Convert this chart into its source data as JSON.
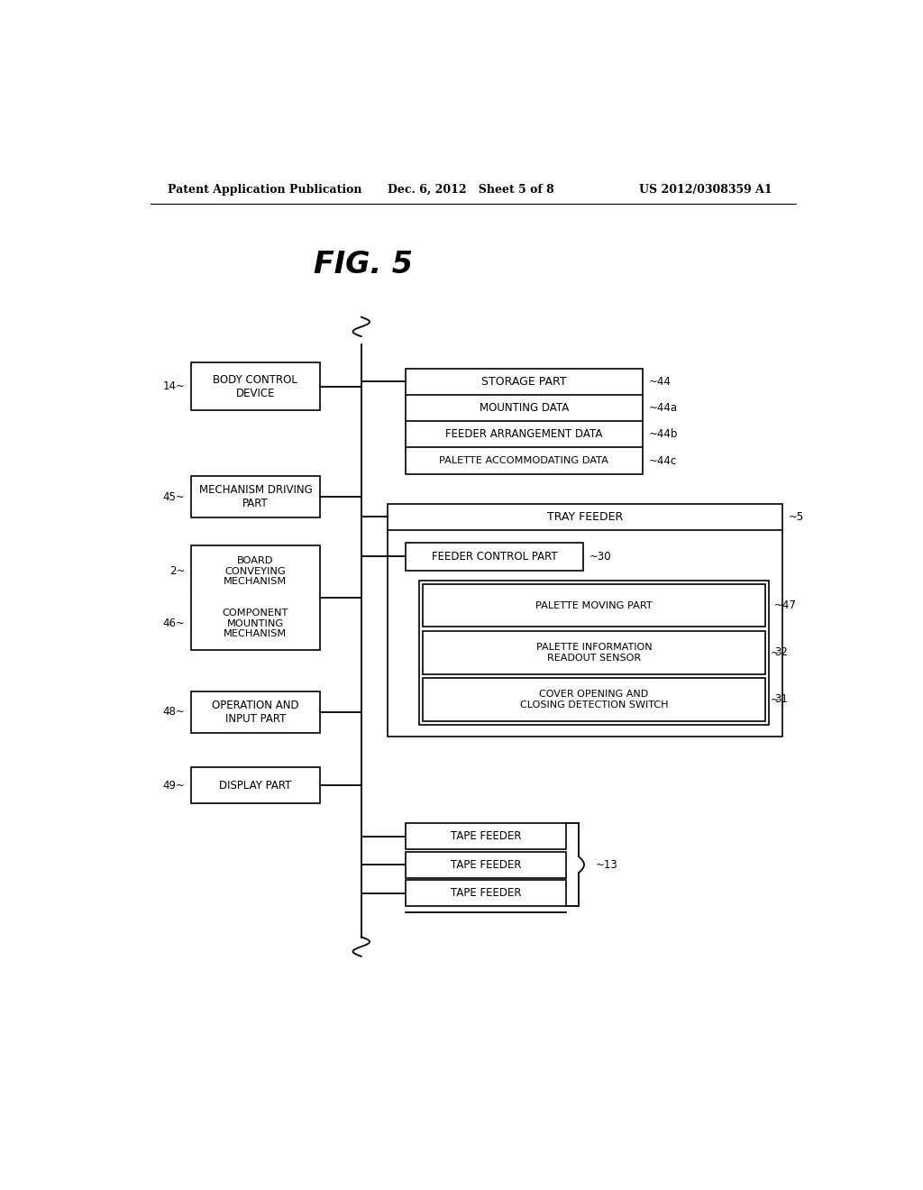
{
  "bg_color": "#ffffff",
  "header_left": "Patent Application Publication",
  "header_mid": "Dec. 6, 2012   Sheet 5 of 8",
  "header_right": "US 2012/0308359 A1",
  "fig_label": "FIG. 5"
}
